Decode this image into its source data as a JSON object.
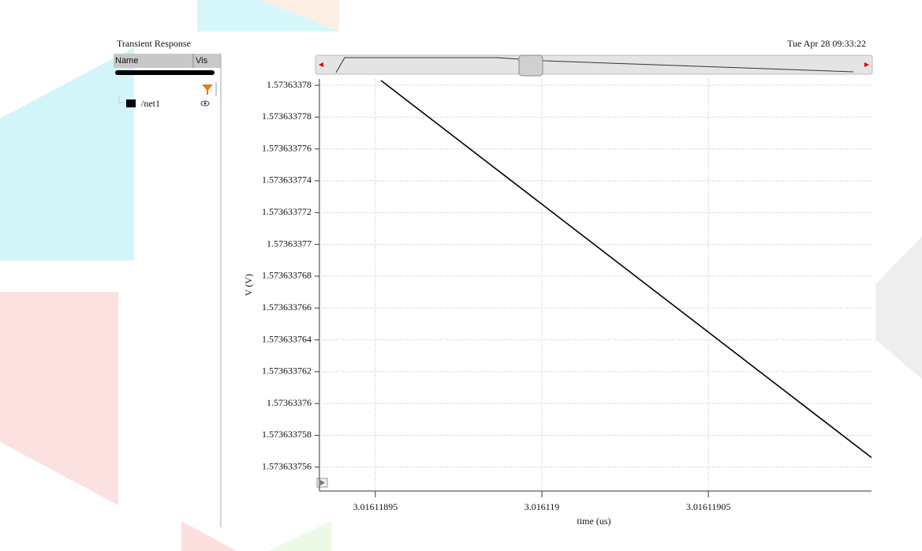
{
  "header": {
    "title": "Transient Response",
    "timestamp": "Tue Apr 28 09:33:22"
  },
  "panel": {
    "columns": [
      "Name",
      "Vis"
    ]
  },
  "chart_data": {
    "type": "line",
    "x_label": "time (us)",
    "y_label": "V (V)",
    "series": [
      {
        "name": "/net1",
        "color": "#000000",
        "x": [
          3.0161189517,
          3.016119099
        ],
        "values": [
          1.5736337803,
          1.5736337566
        ]
      }
    ],
    "xlim": [
      3.0161189332,
      3.016119099
    ],
    "ylim": [
      1.5736337545,
      1.5736337804
    ],
    "xticks": [
      3.01611895,
      3.016119,
      3.01611905
    ],
    "yticks": [
      1.57363378,
      1.573633778,
      1.573633776,
      1.573633774,
      1.573633772,
      1.57363377,
      1.573633768,
      1.573633766,
      1.573633764,
      1.573633762,
      1.57363376,
      1.573633758,
      1.573633756
    ],
    "grid": true
  }
}
